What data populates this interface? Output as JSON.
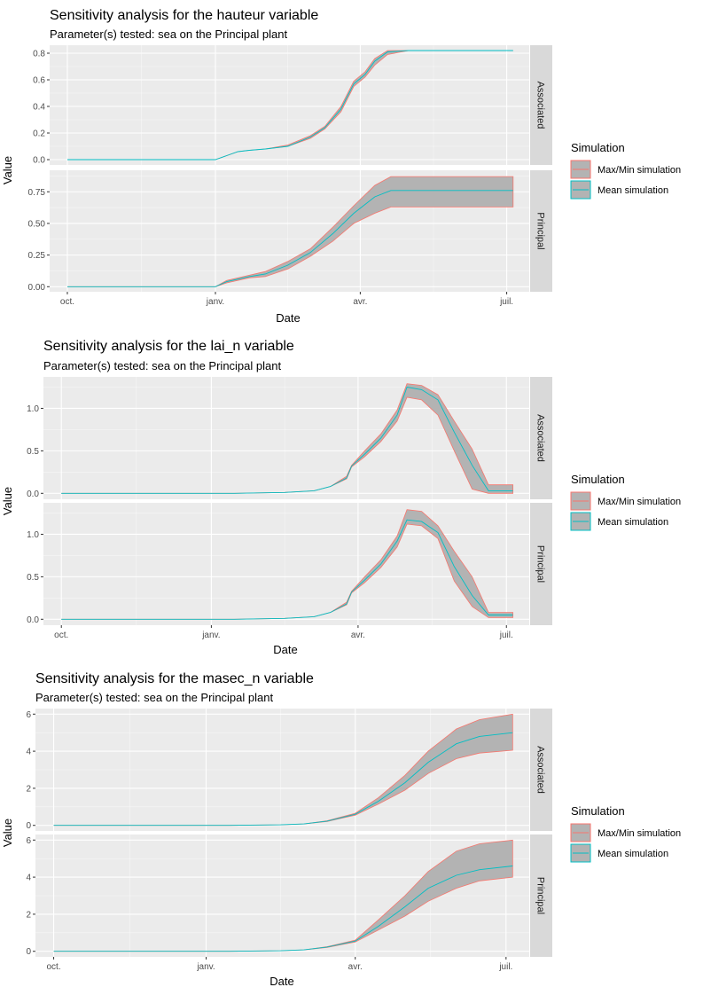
{
  "colors": {
    "panel_bg": "#EBEBEB",
    "grid_major": "#FFFFFF",
    "strip_bg": "#D9D9D9",
    "ribbon_fill": "#B3B3B3",
    "maxmin_line": "#F8766D",
    "mean_line": "#00BFC4"
  },
  "legend": {
    "title": "Simulation",
    "items": [
      {
        "label": "Max/Min simulation",
        "color": "#F8766D"
      },
      {
        "label": "Mean simulation",
        "color": "#00BFC4"
      }
    ]
  },
  "chart_data": [
    {
      "type": "area",
      "title": "Sensitivity analysis for the hauteur variable",
      "subtitle": "Parameter(s) tested: sea on the  Principal plant",
      "xlabel": "Date",
      "ylabel": "Value",
      "x_ticks": [
        "oct.",
        "janv.",
        "avr.",
        "juil."
      ],
      "xlim": [
        "2017-09-20",
        "2018-07-15"
      ],
      "x_tick_dates": [
        "2017-10-01",
        "2018-01-01",
        "2018-04-01",
        "2018-07-01"
      ],
      "facets": [
        {
          "name": "Associated",
          "ylim": [
            -0.04,
            0.86
          ],
          "y_ticks": [
            0.0,
            0.2,
            0.4,
            0.6,
            0.8
          ],
          "dates": [
            "2017-10-01",
            "2018-01-01",
            "2018-01-08",
            "2018-01-15",
            "2018-01-22",
            "2018-02-01",
            "2018-02-15",
            "2018-03-01",
            "2018-03-10",
            "2018-03-20",
            "2018-03-28",
            "2018-04-04",
            "2018-04-10",
            "2018-04-18",
            "2018-05-01",
            "2018-06-01",
            "2018-07-05"
          ],
          "max": [
            0.0,
            0.0,
            0.03,
            0.06,
            0.07,
            0.08,
            0.11,
            0.18,
            0.25,
            0.4,
            0.59,
            0.66,
            0.76,
            0.82,
            0.82,
            0.82,
            0.82
          ],
          "mean": [
            0.0,
            0.0,
            0.03,
            0.06,
            0.07,
            0.08,
            0.1,
            0.17,
            0.24,
            0.38,
            0.57,
            0.64,
            0.74,
            0.81,
            0.82,
            0.82,
            0.82
          ],
          "min": [
            0.0,
            0.0,
            0.03,
            0.06,
            0.07,
            0.08,
            0.1,
            0.16,
            0.23,
            0.36,
            0.55,
            0.62,
            0.71,
            0.79,
            0.82,
            0.82,
            0.82
          ]
        },
        {
          "name": "Principal",
          "ylim": [
            -0.04,
            0.92
          ],
          "y_ticks": [
            0.0,
            0.25,
            0.5,
            0.75
          ],
          "dates": [
            "2017-10-01",
            "2018-01-01",
            "2018-01-08",
            "2018-01-22",
            "2018-02-01",
            "2018-02-15",
            "2018-03-01",
            "2018-03-15",
            "2018-03-28",
            "2018-04-10",
            "2018-04-20",
            "2018-05-01",
            "2018-06-01",
            "2018-07-05"
          ],
          "max": [
            0.0,
            0.0,
            0.05,
            0.09,
            0.12,
            0.2,
            0.3,
            0.47,
            0.64,
            0.8,
            0.87,
            0.87,
            0.87,
            0.87
          ],
          "mean": [
            0.0,
            0.0,
            0.04,
            0.08,
            0.1,
            0.17,
            0.27,
            0.42,
            0.58,
            0.71,
            0.76,
            0.76,
            0.76,
            0.76
          ],
          "min": [
            0.0,
            0.0,
            0.03,
            0.07,
            0.08,
            0.14,
            0.24,
            0.36,
            0.5,
            0.58,
            0.63,
            0.63,
            0.63,
            0.63
          ]
        }
      ]
    },
    {
      "type": "area",
      "title": "Sensitivity analysis for the lai_n variable",
      "subtitle": "Parameter(s) tested: sea on the  Principal plant",
      "xlabel": "Date",
      "ylabel": "Value",
      "x_ticks": [
        "oct.",
        "janv.",
        "avr.",
        "juil."
      ],
      "xlim": [
        "2017-09-20",
        "2018-07-15"
      ],
      "x_tick_dates": [
        "2017-10-01",
        "2018-01-01",
        "2018-04-01",
        "2018-07-01"
      ],
      "facets": [
        {
          "name": "Associated",
          "ylim": [
            -0.07,
            1.37
          ],
          "y_ticks": [
            0.0,
            0.5,
            1.0
          ],
          "dates": [
            "2017-10-01",
            "2018-01-15",
            "2018-02-15",
            "2018-03-05",
            "2018-03-15",
            "2018-03-25",
            "2018-03-28",
            "2018-04-05",
            "2018-04-15",
            "2018-04-25",
            "2018-05-01",
            "2018-05-10",
            "2018-05-20",
            "2018-05-30",
            "2018-06-10",
            "2018-06-20",
            "2018-07-05"
          ],
          "max": [
            0.0,
            0.0,
            0.01,
            0.03,
            0.08,
            0.2,
            0.33,
            0.5,
            0.7,
            0.98,
            1.29,
            1.27,
            1.16,
            0.85,
            0.52,
            0.1,
            0.1
          ],
          "mean": [
            0.0,
            0.0,
            0.01,
            0.03,
            0.08,
            0.18,
            0.32,
            0.46,
            0.65,
            0.92,
            1.25,
            1.22,
            1.1,
            0.72,
            0.33,
            0.03,
            0.03
          ],
          "min": [
            0.0,
            0.0,
            0.01,
            0.03,
            0.08,
            0.17,
            0.31,
            0.43,
            0.61,
            0.85,
            1.13,
            1.1,
            0.92,
            0.5,
            0.05,
            0.0,
            0.0
          ]
        },
        {
          "name": "Principal",
          "ylim": [
            -0.07,
            1.37
          ],
          "y_ticks": [
            0.0,
            0.5,
            1.0
          ],
          "dates": [
            "2017-10-01",
            "2018-01-15",
            "2018-02-15",
            "2018-03-05",
            "2018-03-15",
            "2018-03-25",
            "2018-03-28",
            "2018-04-05",
            "2018-04-15",
            "2018-04-25",
            "2018-05-01",
            "2018-05-10",
            "2018-05-20",
            "2018-05-30",
            "2018-06-10",
            "2018-06-20",
            "2018-07-05"
          ],
          "max": [
            0.0,
            0.0,
            0.01,
            0.03,
            0.08,
            0.2,
            0.33,
            0.5,
            0.7,
            0.98,
            1.29,
            1.27,
            1.1,
            0.8,
            0.5,
            0.08,
            0.08
          ],
          "mean": [
            0.0,
            0.0,
            0.01,
            0.03,
            0.08,
            0.18,
            0.32,
            0.46,
            0.65,
            0.92,
            1.17,
            1.15,
            1.02,
            0.62,
            0.28,
            0.05,
            0.05
          ],
          "min": [
            0.0,
            0.0,
            0.01,
            0.03,
            0.08,
            0.17,
            0.31,
            0.43,
            0.61,
            0.85,
            1.12,
            1.1,
            0.95,
            0.45,
            0.15,
            0.02,
            0.02
          ]
        }
      ]
    },
    {
      "type": "area",
      "title": "Sensitivity analysis for the masec_n variable",
      "subtitle": "Parameter(s) tested: sea on the  Principal plant",
      "xlabel": "Date",
      "ylabel": "Value",
      "x_ticks": [
        "oct.",
        "janv.",
        "avr.",
        "juil."
      ],
      "xlim": [
        "2017-09-20",
        "2018-07-15"
      ],
      "x_tick_dates": [
        "2017-10-01",
        "2018-01-01",
        "2018-04-01",
        "2018-07-01"
      ],
      "facets": [
        {
          "name": "Associated",
          "ylim": [
            -0.3,
            6.3
          ],
          "y_ticks": [
            0,
            2,
            4,
            6
          ],
          "dates": [
            "2017-10-01",
            "2018-01-15",
            "2018-02-15",
            "2018-03-01",
            "2018-03-15",
            "2018-04-01",
            "2018-04-15",
            "2018-05-01",
            "2018-05-15",
            "2018-06-01",
            "2018-06-15",
            "2018-07-05"
          ],
          "max": [
            0.0,
            0.0,
            0.03,
            0.08,
            0.25,
            0.65,
            1.5,
            2.7,
            4.0,
            5.2,
            5.7,
            6.0
          ],
          "mean": [
            0.0,
            0.0,
            0.03,
            0.08,
            0.23,
            0.6,
            1.3,
            2.3,
            3.4,
            4.4,
            4.8,
            5.0
          ],
          "min": [
            0.0,
            0.0,
            0.03,
            0.08,
            0.21,
            0.55,
            1.15,
            1.9,
            2.8,
            3.6,
            3.9,
            4.05
          ]
        },
        {
          "name": "Principal",
          "ylim": [
            -0.3,
            6.3
          ],
          "y_ticks": [
            0,
            2,
            4,
            6
          ],
          "dates": [
            "2017-10-01",
            "2018-01-15",
            "2018-02-15",
            "2018-03-01",
            "2018-03-15",
            "2018-04-01",
            "2018-04-15",
            "2018-05-01",
            "2018-05-15",
            "2018-06-01",
            "2018-06-15",
            "2018-07-05"
          ],
          "max": [
            0.0,
            0.0,
            0.03,
            0.08,
            0.25,
            0.6,
            1.7,
            3.0,
            4.3,
            5.4,
            5.8,
            6.0
          ],
          "mean": [
            0.0,
            0.0,
            0.03,
            0.08,
            0.23,
            0.55,
            1.35,
            2.4,
            3.4,
            4.1,
            4.4,
            4.6
          ],
          "min": [
            0.0,
            0.0,
            0.03,
            0.08,
            0.21,
            0.5,
            1.15,
            1.9,
            2.7,
            3.4,
            3.8,
            4.0
          ]
        }
      ]
    }
  ]
}
